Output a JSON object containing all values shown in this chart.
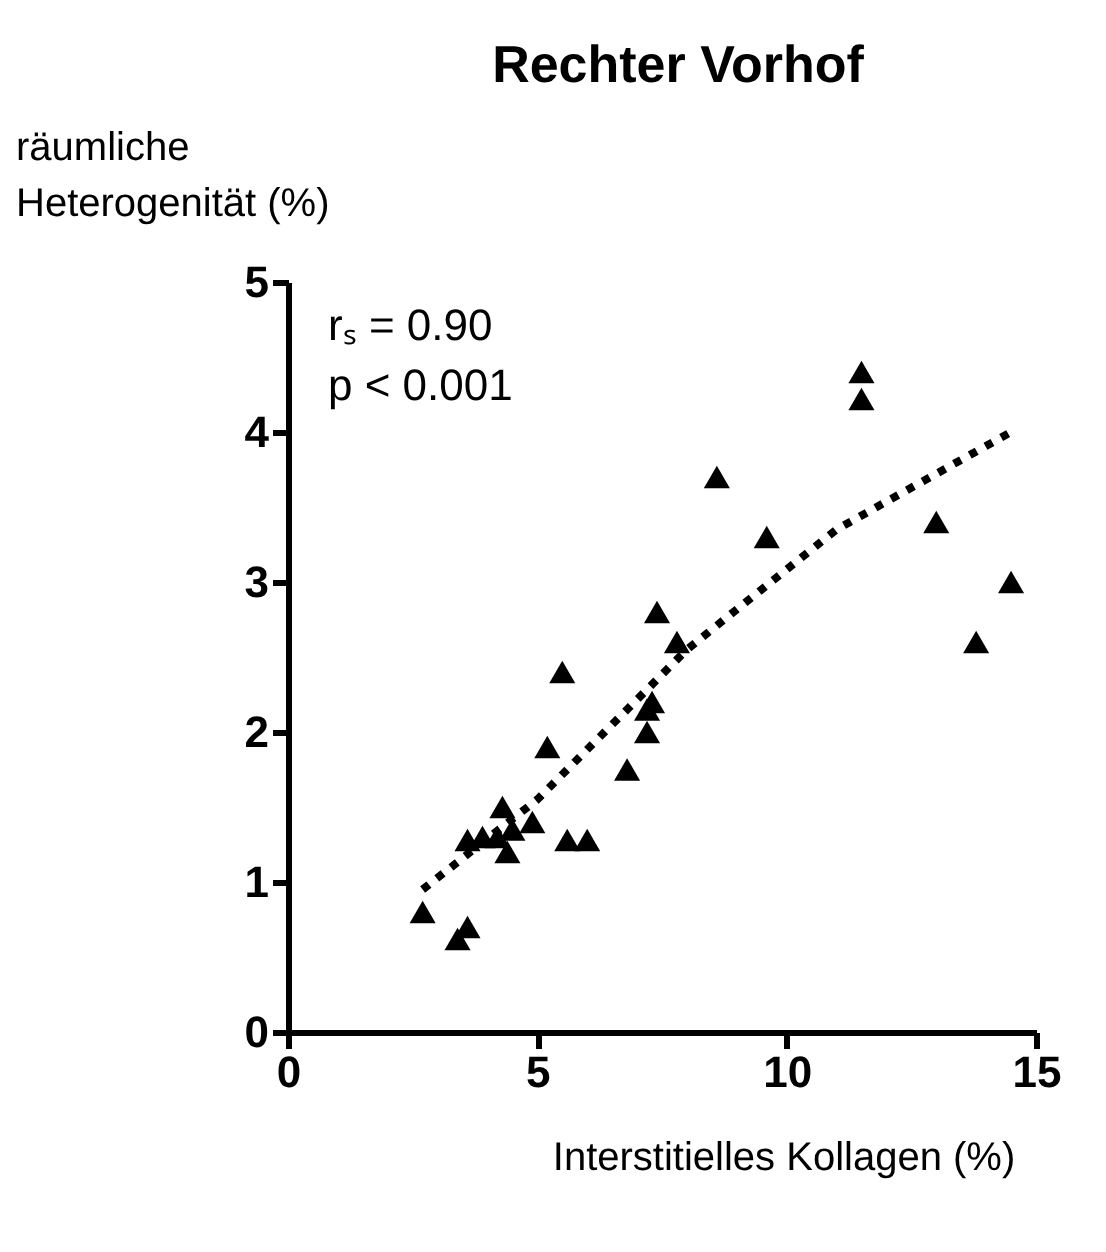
{
  "chart_data": {
    "type": "scatter",
    "title": "Rechter Vorhof",
    "xlabel": "Interstitielles Kollagen (%)",
    "ylabel": "räumliche Heterogenität (%)",
    "annotations": [
      "rₛ = 0.90",
      "p < 0.001"
    ],
    "xlim": [
      0,
      15
    ],
    "xticks": [
      0,
      5,
      10,
      15
    ],
    "ylim": [
      0,
      5
    ],
    "yticks": [
      0,
      1,
      2,
      3,
      4,
      5
    ],
    "grid": false,
    "marker": "triangle",
    "series": [
      {
        "color": "#000000",
        "x": [
          2.7,
          3.4,
          3.6,
          3.6,
          3.9,
          4.2,
          4.3,
          4.4,
          4.5,
          4.9,
          5.2,
          5.5,
          5.6,
          6.0,
          6.8,
          7.2,
          7.2,
          7.3,
          7.4,
          7.8,
          8.6,
          9.6,
          11.5,
          11.5,
          13.0,
          13.8,
          14.5
        ],
        "values": [
          0.8,
          0.62,
          0.7,
          1.28,
          1.3,
          1.3,
          1.5,
          1.2,
          1.35,
          1.4,
          1.9,
          2.4,
          1.28,
          1.28,
          1.75,
          2.0,
          2.15,
          2.2,
          2.8,
          2.6,
          3.7,
          3.3,
          4.4,
          4.22,
          3.4,
          2.6,
          3.0
        ]
      },
      {
        "type": "line",
        "color": "#000000",
        "line_style": "dotted",
        "marker": "none",
        "x": [
          2.7,
          5.0,
          8.0,
          11.0,
          14.5
        ],
        "values": [
          0.95,
          1.55,
          2.55,
          3.35,
          4.0
        ]
      }
    ]
  }
}
